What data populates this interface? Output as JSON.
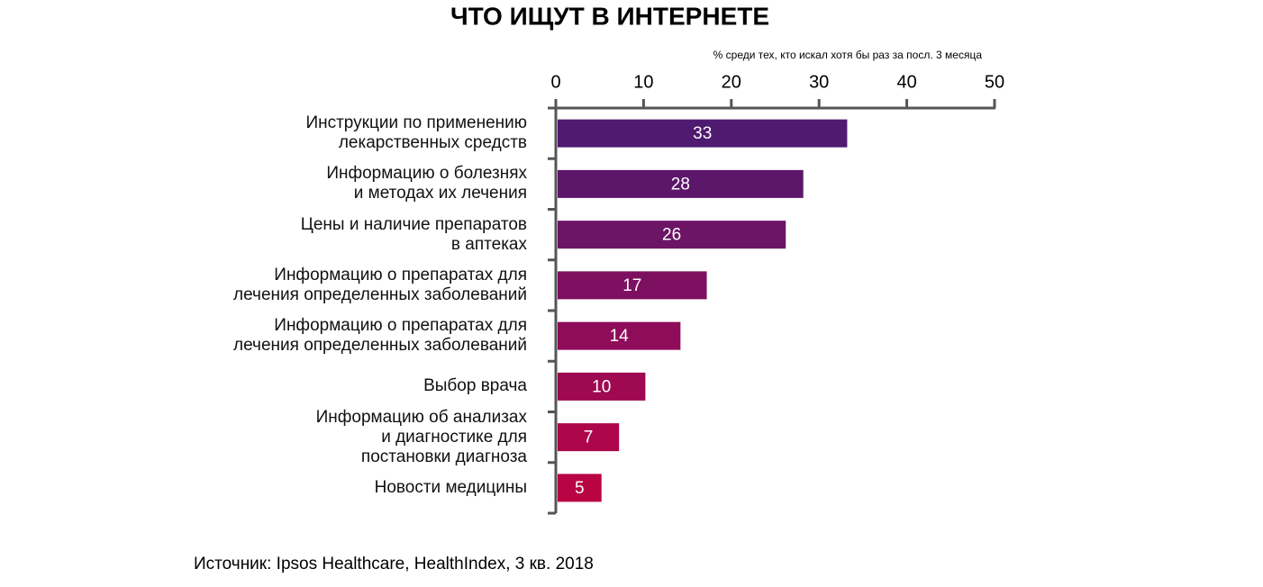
{
  "chart_data": {
    "type": "barh",
    "title": "ЧТО ИЩУТ В ИНТЕРНЕТЕ",
    "subtitle": "% среди тех, кто искал хотя бы раз за посл. 3 месяца",
    "categories": [
      "Инструкции по применению\nлекарственных средств",
      "Информацию о болезнях\nи методах их лечения",
      "Цены и наличие препаратов\nв аптеках",
      "Информацию о препаратах для\nлечения определенных заболеваний",
      "Информацию о препаратах для\nлечения определенных заболеваний",
      "Выбор врача",
      "Информацию об анализах\nи диагностике для\nпостановки диагноза",
      "Новости медицины"
    ],
    "values": [
      33,
      28,
      26,
      17,
      14,
      10,
      7,
      5
    ],
    "colors": [
      "#4f1b70",
      "#5d176a",
      "#6c1465",
      "#7d1060",
      "#8e0c59",
      "#9e0951",
      "#ad064a",
      "#b80443"
    ],
    "xlim": [
      0,
      50
    ],
    "xticks": [
      0,
      10,
      20,
      30,
      40,
      50
    ],
    "source": "Источник: Ipsos Healthcare, HealthIndex, 3 кв. 2018"
  }
}
